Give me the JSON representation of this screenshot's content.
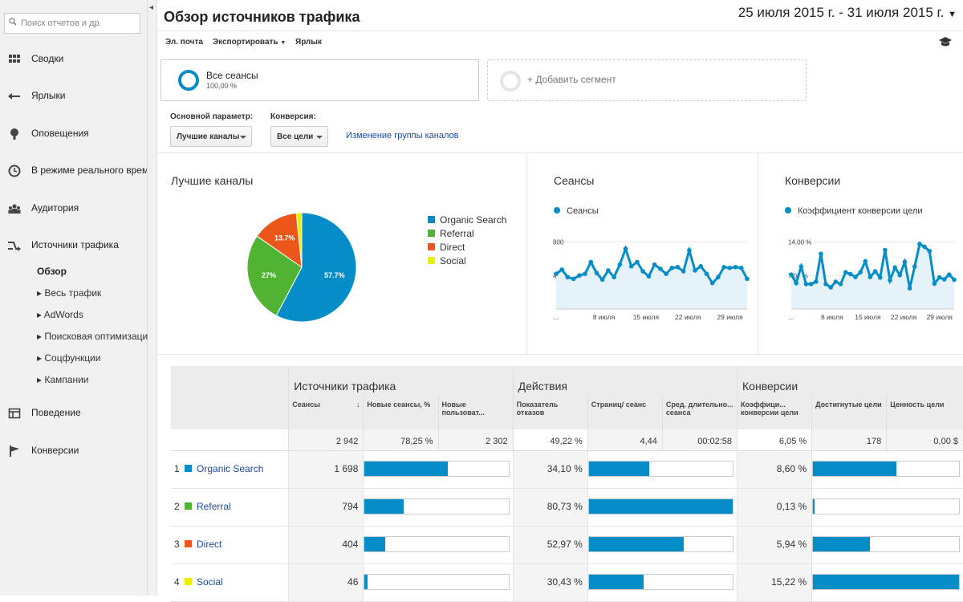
{
  "search": {
    "placeholder": "Поиск отчетов и др."
  },
  "nav": {
    "items": [
      {
        "label": "Сводки",
        "icon": "dashboard-icon"
      },
      {
        "label": "Ярлыки",
        "icon": "shortcut-icon"
      },
      {
        "label": "Оповещения",
        "icon": "bell-icon"
      },
      {
        "label": "В режиме реального времени",
        "icon": "clock-icon"
      },
      {
        "label": "Аудитория",
        "icon": "people-icon"
      },
      {
        "label": "Источники трафика",
        "icon": "acquisition-icon"
      },
      {
        "label": "Поведение",
        "icon": "behavior-icon"
      },
      {
        "label": "Конверсии",
        "icon": "flag-icon"
      }
    ],
    "sub": [
      "Обзор",
      "Весь трафик",
      "AdWords",
      "Поисковая оптимизация",
      "Соцфункции",
      "Кампании"
    ]
  },
  "header": {
    "title": "Обзор источников трафика",
    "date_range": "25 июля 2015 г. - 31 июля 2015 г."
  },
  "toolbar": {
    "email": "Эл. почта",
    "export": "Экспортировать",
    "shortcut": "Ярлык"
  },
  "segments": {
    "all_sessions": "Все сеансы",
    "all_pct": "100,00 %",
    "add": "+ Добавить сегмент"
  },
  "params": {
    "primary_label": "Основной параметр:",
    "primary_value": "Лучшие каналы",
    "conversion_label": "Конверсия:",
    "conversion_value": "Все цели",
    "change_link": "Изменение группы каналов"
  },
  "panels": {
    "channels_title": "Лучшие каналы",
    "sessions_title": "Сеансы",
    "sessions_legend": "Сеансы",
    "conv_title": "Конверсии",
    "conv_legend": "Коэффициент конверсии цели"
  },
  "chart_data": [
    {
      "type": "pie",
      "title": "Лучшие каналы",
      "categories": [
        "Organic Search",
        "Referral",
        "Direct",
        "Social"
      ],
      "values": [
        57.7,
        27,
        13.7,
        1.6
      ],
      "labels": [
        "57.7%",
        "27%",
        "13.7%",
        ""
      ],
      "colors": [
        "#058dc7",
        "#50b432",
        "#ed561b",
        "#edef00"
      ]
    },
    {
      "type": "area",
      "title": "Сеансы",
      "series_name": "Сеансы",
      "yticks": [
        "800",
        "400"
      ],
      "ylim": [
        0,
        900
      ],
      "xticks": [
        "...",
        "8 июля",
        "15 июля",
        "22 июля",
        "29 июля"
      ],
      "values": [
        420,
        470,
        380,
        360,
        400,
        420,
        560,
        430,
        350,
        460,
        380,
        530,
        720,
        510,
        560,
        450,
        390,
        530,
        480,
        420,
        490,
        500,
        450,
        700,
        460,
        510,
        420,
        310,
        380,
        500,
        490,
        500,
        490,
        360
      ]
    },
    {
      "type": "area",
      "title": "Конверсии",
      "series_name": "Коэффициент конверсии цели",
      "yticks": [
        "14,00 %",
        "7,00 %"
      ],
      "ylim": [
        0,
        16
      ],
      "xticks": [
        "...",
        "8 июля",
        "15 июля",
        "22 июля",
        "29 июля"
      ],
      "values": [
        7.3,
        5.5,
        9,
        5.3,
        5.3,
        5.8,
        11.7,
        5.3,
        4.6,
        5.8,
        5.3,
        7.8,
        7.4,
        6.8,
        7.8,
        10.1,
        6.8,
        8,
        6.7,
        12.5,
        6.1,
        8.8,
        7.2,
        10,
        4.4,
        9,
        13.8,
        13.2,
        12.3,
        5.4,
        6.7,
        6.3,
        7.3,
        6.2
      ]
    }
  ],
  "table": {
    "groups": [
      "Источники трафика",
      "Действия",
      "Конверсии"
    ],
    "columns": [
      "Сеансы",
      "Новые сеансы, %",
      "Новые пользоват...",
      "Показатель отказов",
      "Страниц/ сеанс",
      "Сред. длительно... сеанса",
      "Коэффици... конверсии цели",
      "Достигнутые цели",
      "Ценность цели"
    ],
    "totals": [
      "2 942",
      "78,25 %",
      "2 302",
      "49,22 %",
      "4,44",
      "00:02:58",
      "6,05 %",
      "178",
      "0,00 $"
    ],
    "rows": [
      {
        "idx": "1",
        "name": "Organic Search",
        "color": "#058dc7",
        "sessions": "1 698",
        "new_pct": 0.58,
        "bounce": "34,10 %",
        "pages_pct": 0.42,
        "conv": "8,60 %",
        "goals_pct": 0.57
      },
      {
        "idx": "2",
        "name": "Referral",
        "color": "#50b432",
        "sessions": "794",
        "new_pct": 0.27,
        "bounce": "80,73 %",
        "pages_pct": 1.0,
        "conv": "0,13 %",
        "goals_pct": 0.01
      },
      {
        "idx": "3",
        "name": "Direct",
        "color": "#ed561b",
        "sessions": "404",
        "new_pct": 0.14,
        "bounce": "52,97 %",
        "pages_pct": 0.66,
        "conv": "5,94 %",
        "goals_pct": 0.39
      },
      {
        "idx": "4",
        "name": "Social",
        "color": "#edef00",
        "sessions": "46",
        "new_pct": 0.02,
        "bounce": "30,43 %",
        "pages_pct": 0.38,
        "conv": "15,22 %",
        "goals_pct": 1.0
      }
    ]
  }
}
